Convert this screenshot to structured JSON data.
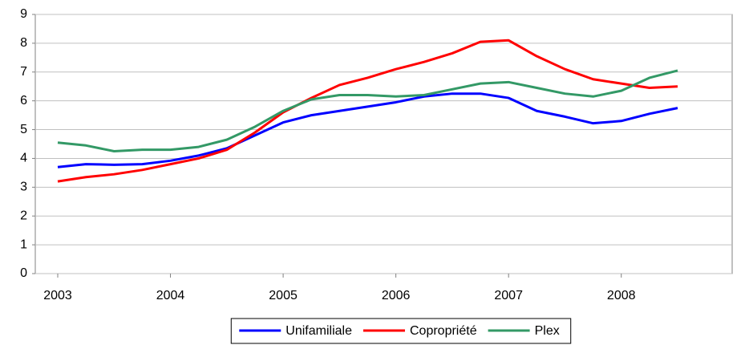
{
  "chart_data": {
    "type": "line",
    "categories": [
      "2003",
      null,
      null,
      null,
      "2004",
      null,
      null,
      null,
      "2005",
      null,
      null,
      null,
      "2006",
      null,
      null,
      null,
      "2007",
      null,
      null,
      null,
      "2008",
      null,
      null
    ],
    "series": [
      {
        "name": "Unifamiliale",
        "color": "#0000ff",
        "values": [
          3.7,
          3.8,
          3.78,
          3.8,
          3.92,
          4.1,
          4.35,
          4.8,
          5.25,
          5.5,
          5.65,
          5.8,
          5.95,
          6.15,
          6.25,
          6.25,
          6.1,
          5.65,
          5.45,
          5.22,
          5.3,
          5.55,
          5.75
        ]
      },
      {
        "name": "Copropriété",
        "color": "#ff0000",
        "values": [
          3.2,
          3.35,
          3.45,
          3.6,
          3.8,
          4.0,
          4.3,
          4.9,
          5.6,
          6.1,
          6.55,
          6.8,
          7.1,
          7.35,
          7.65,
          8.05,
          8.1,
          7.55,
          7.1,
          6.75,
          6.6,
          6.45,
          6.5
        ]
      },
      {
        "name": "Plex",
        "color": "#339966",
        "values": [
          4.55,
          4.45,
          4.25,
          4.3,
          4.3,
          4.4,
          4.65,
          5.1,
          5.65,
          6.05,
          6.2,
          6.2,
          6.15,
          6.2,
          6.4,
          6.6,
          6.65,
          6.45,
          6.25,
          6.15,
          6.35,
          6.8,
          7.05
        ]
      }
    ],
    "ylim": [
      0,
      9
    ],
    "yticks": [
      0,
      1,
      2,
      3,
      4,
      5,
      6,
      7,
      8,
      9
    ],
    "grid": true,
    "legend": "bottom"
  }
}
